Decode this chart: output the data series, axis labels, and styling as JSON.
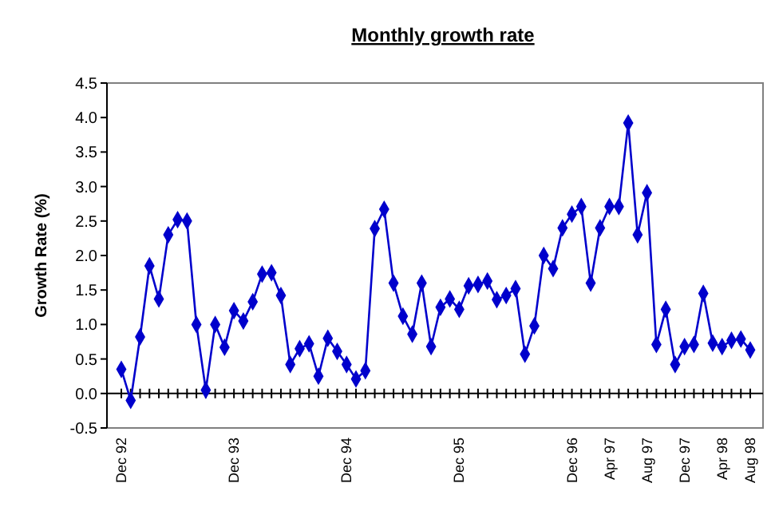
{
  "chart_data": {
    "type": "line",
    "title": "Monthly growth rate",
    "ylabel": "Growth Rate (%)",
    "categories": [
      "Dec 92",
      null,
      null,
      null,
      null,
      null,
      null,
      null,
      null,
      null,
      null,
      null,
      "Dec 93",
      null,
      null,
      null,
      null,
      null,
      null,
      null,
      null,
      null,
      null,
      null,
      "Dec 94",
      null,
      null,
      null,
      null,
      null,
      null,
      null,
      null,
      null,
      null,
      null,
      "Dec 95",
      null,
      null,
      null,
      null,
      null,
      null,
      null,
      null,
      null,
      null,
      null,
      "Dec 96",
      null,
      null,
      null,
      "Apr 97",
      null,
      null,
      null,
      "Aug 97",
      null,
      null,
      null,
      "Dec 97",
      null,
      null,
      null,
      "Apr 98",
      null,
      null,
      "Aug 98"
    ],
    "series": [
      {
        "color": "#0000cc",
        "values": [
          0.35,
          -0.1,
          0.82,
          1.85,
          1.37,
          2.3,
          2.52,
          2.5,
          1.0,
          0.05,
          1.0,
          0.67,
          1.2,
          1.05,
          1.33,
          1.73,
          1.75,
          1.42,
          0.42,
          0.65,
          0.72,
          0.25,
          0.8,
          0.61,
          0.42,
          0.21,
          0.33,
          2.39,
          2.67,
          1.6,
          1.12,
          0.86,
          1.6,
          0.68,
          1.25,
          1.37,
          1.22,
          1.56,
          1.58,
          1.63,
          1.36,
          1.42,
          1.52,
          0.57,
          0.98,
          2.0,
          1.81,
          2.4,
          2.6,
          2.71,
          1.6,
          2.4,
          2.71,
          2.71,
          3.92,
          2.3,
          2.91,
          0.71,
          1.22,
          0.42,
          0.68,
          0.71,
          1.45,
          0.73,
          0.68,
          0.77,
          0.79,
          0.63
        ]
      }
    ],
    "ylim": [
      -0.5,
      4.5
    ],
    "yticks": [
      {
        "value": -0.5,
        "label": "-0.5"
      },
      {
        "value": 0,
        "label": "0.0"
      },
      {
        "value": 0.5,
        "label": "0.5"
      },
      {
        "value": 1,
        "label": "1.0"
      },
      {
        "value": 1.5,
        "label": "1.5"
      },
      {
        "value": 2,
        "label": "2.0"
      },
      {
        "value": 2.5,
        "label": "2.5"
      },
      {
        "value": 3,
        "label": "3.0"
      },
      {
        "value": 3.5,
        "label": "3.5"
      },
      {
        "value": 4,
        "label": "4.0"
      },
      {
        "value": 4.5,
        "label": "4.5"
      }
    ],
    "marker": "diamond",
    "line_style": "solid"
  }
}
